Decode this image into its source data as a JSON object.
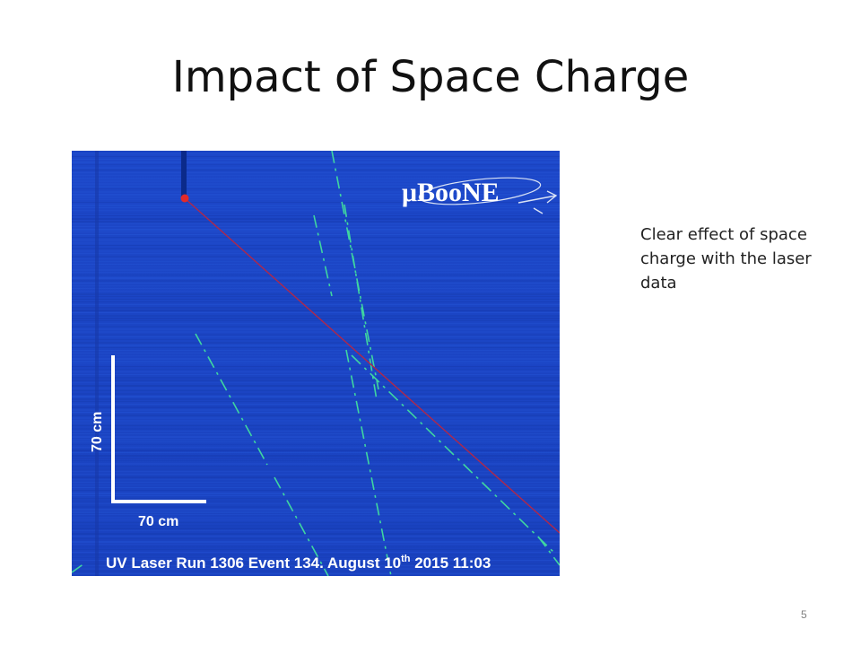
{
  "slide": {
    "title": "Impact of Space Charge",
    "note": "Clear effect of space charge with the laser data",
    "page_number": "5"
  },
  "figure": {
    "logo_text": "μBooNE",
    "scale_vertical": "70 cm",
    "scale_horizontal": "70 cm",
    "caption_main": "UV Laser Run 1306 Event 134. August 10",
    "caption_sup": "th",
    "caption_tail": " 2015 11:03",
    "colors": {
      "background": "#1a44c4",
      "track": "#3fd6a0",
      "reference_line": "#b0284a",
      "scale_bar": "#ffffff"
    }
  }
}
